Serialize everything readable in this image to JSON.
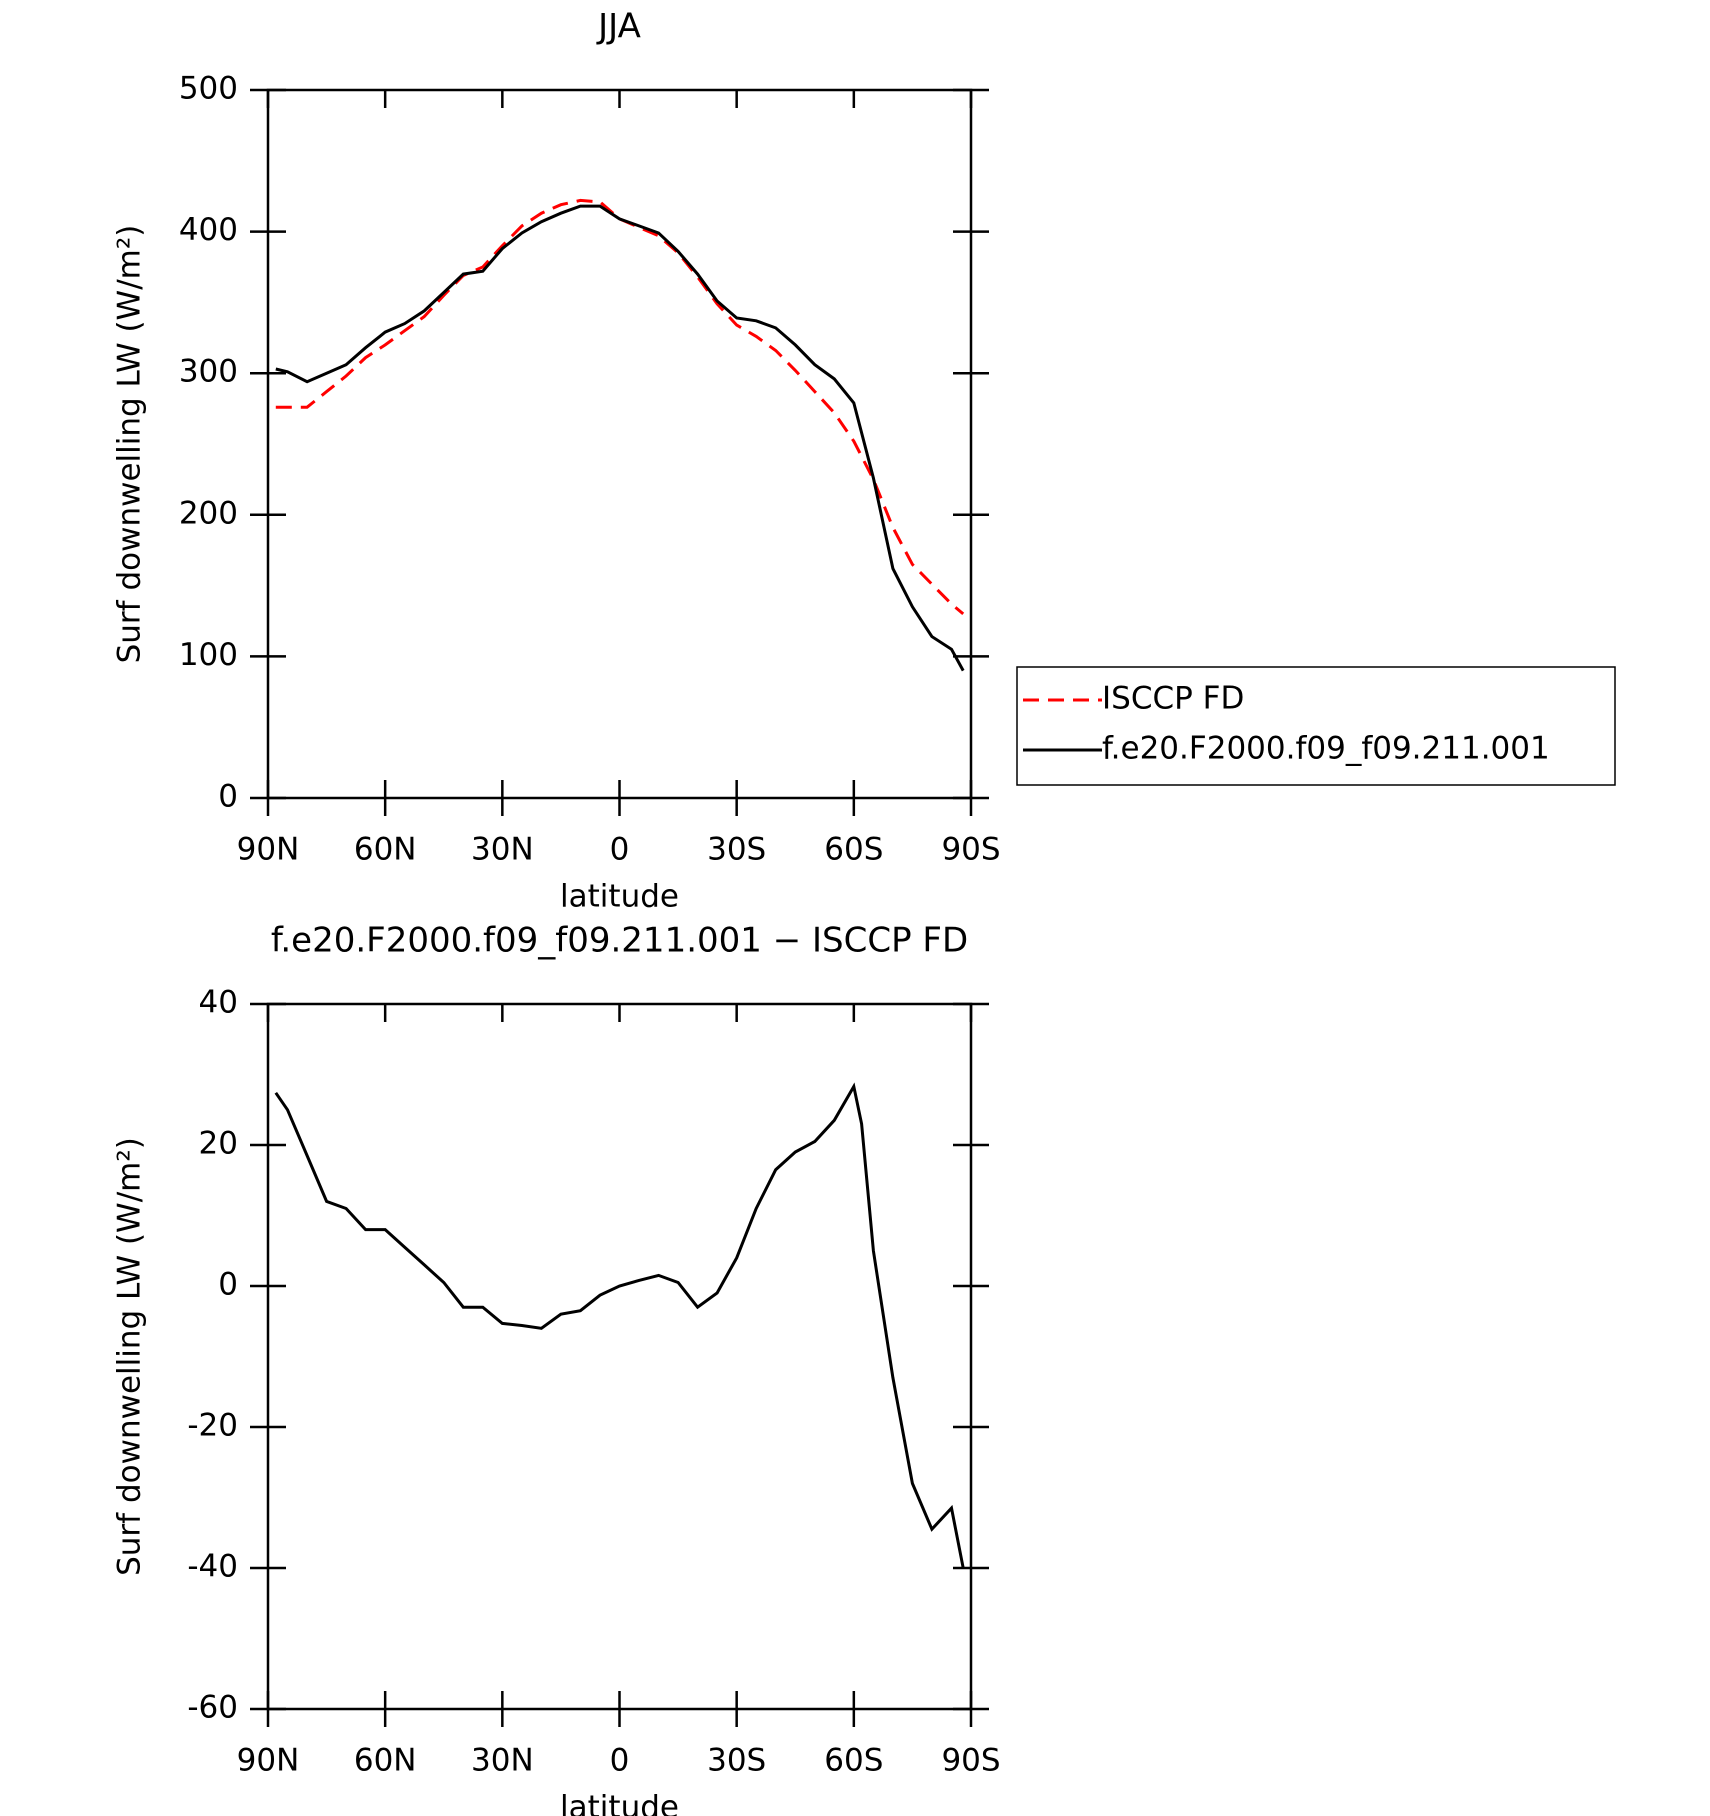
{
  "chart_data": [
    {
      "type": "line",
      "title": "JJA",
      "x_label": "latitude",
      "y_label": "Surf downwelling LW (W/m²)",
      "x": [
        88,
        85,
        80,
        75,
        70,
        65,
        60,
        55,
        50,
        45,
        40,
        35,
        30,
        25,
        20,
        15,
        10,
        5,
        0,
        -5,
        -10,
        -15,
        -20,
        -25,
        -30,
        -35,
        -40,
        -45,
        -50,
        -55,
        -60,
        -65,
        -70,
        -75,
        -80,
        -85,
        -88
      ],
      "series": [
        {
          "name": "ISCCP FD",
          "color": "#ff0000",
          "dash": "dashed",
          "values": [
            276,
            276,
            276,
            287,
            298,
            311,
            320,
            330,
            340,
            355,
            369,
            375,
            390,
            404,
            413,
            419,
            422,
            421,
            409,
            403,
            397,
            385,
            368,
            349,
            334,
            326,
            316,
            302,
            287,
            272,
            252,
            225,
            191,
            165,
            151,
            137,
            130
          ]
        },
        {
          "name": "f.e20.F2000.f09_f09.211.001",
          "color": "#000000",
          "dash": "solid",
          "values": [
            303,
            301,
            294,
            300,
            306,
            318,
            329,
            335,
            344,
            357,
            370,
            372,
            388,
            399,
            407,
            413,
            418,
            418,
            409,
            404,
            399,
            386,
            370,
            351,
            339,
            337,
            332,
            320,
            306,
            296,
            279,
            226,
            162,
            135,
            114,
            105,
            90
          ]
        }
      ],
      "xlim": [
        90,
        -90
      ],
      "xticks": [
        {
          "value": 90,
          "label": "90N"
        },
        {
          "value": 60,
          "label": "60N"
        },
        {
          "value": 30,
          "label": "30N"
        },
        0,
        {
          "value": -30,
          "label": "30S"
        },
        {
          "value": -60,
          "label": "60S"
        },
        {
          "value": -90,
          "label": "90S"
        }
      ],
      "ylim": [
        0,
        500
      ],
      "yticks": [
        0,
        100,
        200,
        300,
        400,
        500
      ],
      "legend": "right"
    },
    {
      "type": "line",
      "title": "f.e20.F2000.f09_f09.211.001 − ISCCP FD",
      "x_label": "latitude",
      "y_label": "Surf downwelling LW (W/m²)",
      "x": [
        88,
        85,
        80,
        75,
        70,
        65,
        60,
        55,
        50,
        45,
        40,
        35,
        30,
        25,
        20,
        15,
        10,
        5,
        0,
        -5,
        -10,
        -15,
        -20,
        -25,
        -30,
        -35,
        -40,
        -45,
        -50,
        -55,
        -60,
        -62,
        -65,
        -70,
        -75,
        -80,
        -85,
        -88
      ],
      "series": [
        {
          "color": "#000000",
          "dash": "solid",
          "values": [
            27.4,
            25,
            18.5,
            12,
            11,
            8,
            8,
            5.5,
            3,
            0.5,
            -3,
            -3,
            -5.3,
            -5.6,
            -6,
            -4,
            -3.5,
            -1.3,
            0,
            0.8,
            1.5,
            0.5,
            -3,
            -1,
            4,
            11,
            16.5,
            19,
            20.5,
            23.5,
            28.3,
            23,
            5,
            -13,
            -28,
            -34.5,
            -31.5,
            -40
          ]
        }
      ],
      "xlim": [
        90,
        -90
      ],
      "xticks": [
        {
          "value": 90,
          "label": "90N"
        },
        {
          "value": 60,
          "label": "60N"
        },
        {
          "value": 30,
          "label": "30N"
        },
        0,
        {
          "value": -30,
          "label": "30S"
        },
        {
          "value": -60,
          "label": "60S"
        },
        {
          "value": -90,
          "label": "90S"
        }
      ],
      "ylim": [
        -60,
        40
      ],
      "yticks": [
        -60,
        -40,
        -20,
        0,
        20,
        40
      ]
    }
  ]
}
